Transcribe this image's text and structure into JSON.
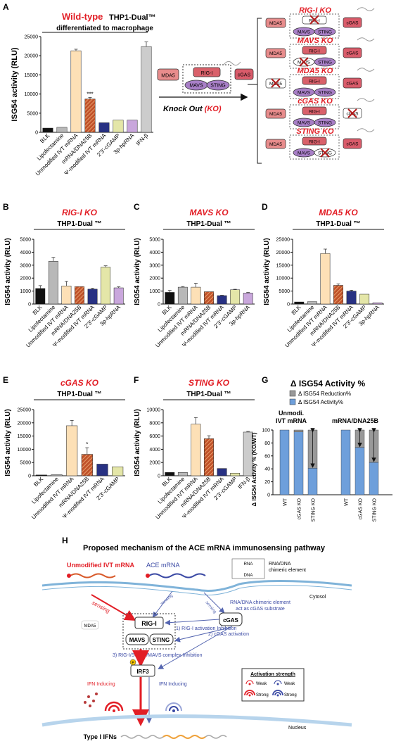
{
  "colors": {
    "blk": "#111111",
    "lipo": "#b8b8b8",
    "unmod": "#fde0b6",
    "chimeric": "#c0522a",
    "psi": "#283183",
    "cgamp": "#e4e6a8",
    "hprna": "#c9a7dc",
    "ifnb": "#cccccc",
    "activity": "#6e9fdb",
    "reduction": "#999999",
    "red": "#e21e26",
    "mda5": "#e88c8c",
    "rigi": "#d9606a",
    "mavs": "#a87fc7",
    "cgas": "#d95b6a"
  },
  "panel_letters": [
    "A",
    "B",
    "C",
    "D",
    "E",
    "F",
    "G",
    "H"
  ],
  "schematic": {
    "wt_title_red": "Wild-type",
    "wt_title_black": "THP1-Dual™",
    "wt_subtitle": "differentiated to macrophage",
    "knockout_label": "Knock Out",
    "knockout_abbrev": "(KO)",
    "ko_titles": [
      "RIG-I KO",
      "MAVS KO",
      "MDA5 KO",
      "cGAS KO",
      "STING KO"
    ],
    "mda5": "MDA5",
    "rigi": "RIG-I",
    "mavs": "MAVS",
    "sting": "STING",
    "cgas": "cGAS"
  },
  "mechanism": {
    "title": "Proposed mechanism of the ACE mRNA immunosensing pathway",
    "unmod_label": "Unmodified  IVT mRNA",
    "ace_label": "ACE mRNA",
    "rna": "RNA",
    "dna": "DNA",
    "chimeric_label": "RNA/DNA chimeric element",
    "cytosol": "Cytosol",
    "sensing": "sensing",
    "substrate_note": "RNA/DNA chimeric element act as cGAS substrate",
    "step1": "1) RIG-I activation Inhibition",
    "step2": "2) cGAS activation",
    "step3": "3) RIG-I/STING/MAVS complex Inhibition",
    "mda5": "MDA5",
    "rigi": "RIG-I",
    "mavs": "MAVS",
    "sting": "STING",
    "cgas": "cGAS",
    "p": "P",
    "irf3": "IRF3",
    "ifn_inducing": "IFN Inducing",
    "type1": "Type I IFNs",
    "nucleus": "Nucleus",
    "legend_title": "Activation strength",
    "weak": "Weak",
    "strong": "Strong"
  },
  "chart_data": [
    {
      "panel": "A",
      "type": "bar",
      "ylabel": "ISG54 activity (RLU)",
      "ylim": [
        0,
        25000
      ],
      "yticks": [
        0,
        5000,
        10000,
        15000,
        20000,
        25000
      ],
      "categories": [
        "BLK",
        "Lipofectamine",
        "Unmodified IVT mRNA",
        "mRNA/DNA25B",
        "Ψ-modified IVT mRNA",
        "2'3'-cGAMP",
        "3p-hpRNA",
        "IFN-β"
      ],
      "values": [
        1100,
        1300,
        21300,
        8700,
        2500,
        3200,
        3200,
        22400
      ],
      "errors": [
        0,
        0,
        400,
        400,
        0,
        0,
        0,
        1200
      ],
      "annotations": [
        {
          "index": 3,
          "text": "***"
        }
      ]
    },
    {
      "panel": "B",
      "type": "bar",
      "title": "RIG-I KO",
      "subtitle": "THP1-Dual ™",
      "ylabel": "ISG54 activity (RLU)",
      "ylim": [
        0,
        5000
      ],
      "yticks": [
        0,
        1000,
        2000,
        3000,
        4000,
        5000
      ],
      "categories": [
        "BLK",
        "Lipofectamine",
        "Unmodified IVT mRNA",
        "mRNA/DNA25B",
        "Ψ-modified IVT mRNA",
        "2'3'-cGAMP",
        "3p-hpRNA"
      ],
      "values": [
        1200,
        3300,
        1400,
        1350,
        1150,
        2850,
        1250
      ],
      "errors": [
        220,
        300,
        350,
        0,
        60,
        100,
        80
      ]
    },
    {
      "panel": "C",
      "type": "bar",
      "title": "MAVS KO",
      "subtitle": "THP1-Dual ™",
      "ylabel": "ISG54 activity (RLU)",
      "ylim": [
        0,
        5000
      ],
      "yticks": [
        0,
        1000,
        2000,
        3000,
        4000,
        5000
      ],
      "categories": [
        "BLK",
        "Lipofectamine",
        "Unmodified IVT mRNA",
        "mRNA/DNA25B",
        "Ψ-modified IVT mRNA",
        "2'3'-cGAMP",
        "3p-hpRNA"
      ],
      "values": [
        900,
        1300,
        1300,
        950,
        650,
        1100,
        850
      ],
      "errors": [
        150,
        50,
        300,
        0,
        30,
        40,
        40
      ]
    },
    {
      "panel": "D",
      "type": "bar",
      "title": "MDA5 KO",
      "subtitle": "THP1-Dual ™",
      "ylabel": "ISG54 activity (RLU)",
      "ylim": [
        0,
        25000
      ],
      "yticks": [
        0,
        5000,
        10000,
        15000,
        20000,
        25000
      ],
      "categories": [
        "BLK",
        "Lipofectamine",
        "Unmodified IVT mRNA",
        "mRNA/DNA25B",
        "Ψ-modified IVT mRNA",
        "2'3'-cGAMP",
        "3p-hpRNA"
      ],
      "values": [
        800,
        900,
        19500,
        7200,
        5000,
        3800,
        500
      ],
      "errors": [
        0,
        0,
        1700,
        600,
        300,
        0,
        0
      ]
    },
    {
      "panel": "E",
      "type": "bar",
      "title": "cGAS KO",
      "subtitle": "THP1-Dual ™",
      "ylabel": "ISG54 activity (RLU)",
      "ylim": [
        0,
        25000
      ],
      "yticks": [
        0,
        5000,
        10000,
        15000,
        20000,
        25000
      ],
      "categories": [
        "BLK",
        "Lipofectamine",
        "Unmodified IVT mRNA",
        "mRNA/DNA25B",
        "Ψ-modified IVT mRNA",
        "2'3'-cGAMP"
      ],
      "values": [
        300,
        400,
        18900,
        8100,
        4400,
        3400
      ],
      "errors": [
        0,
        0,
        2000,
        2500,
        0,
        0
      ],
      "annotations": [
        {
          "index": 3,
          "text": "*"
        }
      ]
    },
    {
      "panel": "F",
      "type": "bar",
      "title": "STING KO",
      "subtitle": "THP1-Dual ™",
      "ylabel": "ISG54 activity (RLU)",
      "ylim": [
        0,
        10000
      ],
      "yticks": [
        0,
        2000,
        4000,
        6000,
        8000,
        10000
      ],
      "categories": [
        "BLK",
        "Lipofectamine",
        "Unmodified IVT mRNA",
        "mRNA/DNA25B",
        "Ψ-modified IVT mRNA",
        "2'3'-cGAMP",
        "IFN-β"
      ],
      "values": [
        500,
        500,
        7800,
        5600,
        1100,
        400,
        6600
      ],
      "errors": [
        0,
        0,
        1000,
        450,
        0,
        0,
        100
      ]
    },
    {
      "panel": "G",
      "type": "bar",
      "title": "Δ ISG54 Activity %",
      "ylabel": "Δ ISG54 Activity % (KO/WT)",
      "ylim": [
        0,
        100
      ],
      "yticks": [
        0,
        20,
        40,
        60,
        80,
        100
      ],
      "legend": [
        "Δ ISG54 Reduction%",
        "Δ ISG54 Activity%"
      ],
      "groups": [
        "Unmodi. IVT mRNA",
        "mRNA/DNA25B"
      ],
      "categories": [
        "WT",
        "cGAS KO",
        "STING KO"
      ],
      "series": [
        {
          "name": "Δ ISG54 Activity%",
          "values": [
            [
              100,
              97,
              41
            ],
            [
              100,
              73,
              50
            ]
          ]
        },
        {
          "name": "Δ ISG54 Reduction%",
          "values": [
            [
              0,
              3,
              59
            ],
            [
              0,
              27,
              50
            ]
          ]
        }
      ]
    }
  ]
}
